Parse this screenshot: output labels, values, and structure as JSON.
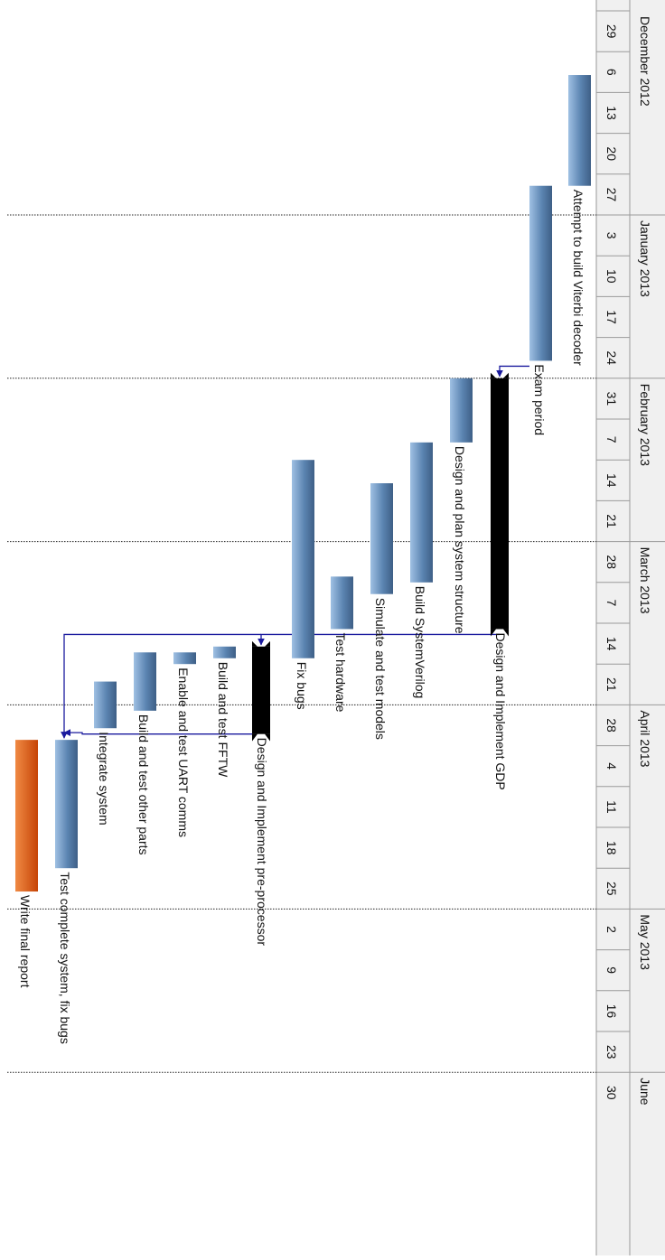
{
  "chart_data": {
    "type": "gantt",
    "orientation": "rotated-90-clockwise",
    "timeline": {
      "months": [
        {
          "label": "December 2012",
          "weeks": [
            "29",
            "6",
            "13",
            "20",
            "27"
          ]
        },
        {
          "label": "January 2013",
          "weeks": [
            "3",
            "10",
            "17",
            "24"
          ]
        },
        {
          "label": "February 2013",
          "weeks": [
            "31",
            "7",
            "14",
            "21"
          ]
        },
        {
          "label": "March 2013",
          "weeks": [
            "28",
            "7",
            "14",
            "21"
          ]
        },
        {
          "label": "April 2013",
          "weeks": [
            "28",
            "4",
            "11",
            "18",
            "25"
          ]
        },
        {
          "label": "May 2013",
          "weeks": [
            "2",
            "9",
            "16",
            "23"
          ]
        },
        {
          "label": "June",
          "weeks": [
            "30"
          ]
        }
      ]
    },
    "tasks": [
      {
        "name": "Attempt to build Viterbi decoder",
        "start": "2012-12-10",
        "end": "2012-12-29",
        "style": "task"
      },
      {
        "name": "Exam period",
        "start": "2012-12-29",
        "end": "2013-01-28",
        "style": "task"
      },
      {
        "name": "Design and Implement GDP",
        "start": "2013-01-31",
        "end": "2013-03-15",
        "style": "summary"
      },
      {
        "name": "Design and plan system structure",
        "start": "2013-01-31",
        "end": "2013-02-11",
        "style": "task"
      },
      {
        "name": "Build SystemVerilog",
        "start": "2013-02-11",
        "end": "2013-03-07",
        "style": "task"
      },
      {
        "name": "Simulate and test models",
        "start": "2013-02-18",
        "end": "2013-03-09",
        "style": "task"
      },
      {
        "name": "Test hardware",
        "start": "2013-03-06",
        "end": "2013-03-15",
        "style": "task"
      },
      {
        "name": "Fix bugs",
        "start": "2013-02-14",
        "end": "2013-03-20",
        "style": "task"
      },
      {
        "name": "Design and Implement pre-processor",
        "start": "2013-03-18",
        "end": "2013-04-02",
        "style": "summary"
      },
      {
        "name": "Build and test FFTW",
        "start": "2013-03-18",
        "end": "2013-03-20",
        "style": "task"
      },
      {
        "name": "Enable and test UART comms",
        "start": "2013-03-19",
        "end": "2013-03-21",
        "style": "task"
      },
      {
        "name": "Build and test other parts",
        "start": "2013-03-19",
        "end": "2013-03-29",
        "style": "task"
      },
      {
        "name": "Integrate system",
        "start": "2013-03-24",
        "end": "2013-04-01",
        "style": "task"
      },
      {
        "name": "Test complete system, fix bugs",
        "start": "2013-04-03",
        "end": "2013-04-25",
        "style": "task"
      },
      {
        "name": "Write final report",
        "start": "2013-04-03",
        "end": "2013-04-29",
        "style": "report"
      }
    ],
    "dependencies": [
      {
        "from": "Exam period",
        "to": "Design and Implement GDP"
      },
      {
        "from": "Design and Implement GDP",
        "to": "Design and Implement pre-processor"
      },
      {
        "from": "Design and Implement GDP",
        "to": "Test complete system, fix bugs"
      },
      {
        "from": "Design and Implement pre-processor",
        "to": "Test complete system, fix bugs"
      }
    ],
    "colors": {
      "task": "#5b84b1",
      "summary": "#000000",
      "report": "#e4520c",
      "link": "#1a1a9e",
      "header_bg": "#f0f0f0",
      "header_line": "#9a9a9a"
    }
  }
}
